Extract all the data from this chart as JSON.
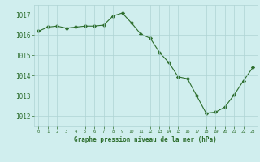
{
  "x": [
    0,
    1,
    2,
    3,
    4,
    5,
    6,
    7,
    8,
    9,
    10,
    11,
    12,
    13,
    14,
    15,
    16,
    17,
    18,
    19,
    20,
    21,
    22,
    23
  ],
  "y": [
    1016.2,
    1016.4,
    1016.45,
    1016.35,
    1016.4,
    1016.45,
    1016.45,
    1016.5,
    1016.95,
    1017.1,
    1016.6,
    1016.05,
    1015.85,
    1015.15,
    1014.65,
    1013.95,
    1013.85,
    1013.0,
    1012.15,
    1012.2,
    1012.45,
    1013.05,
    1013.75,
    1014.4
  ],
  "line_color": "#2d6e2d",
  "marker": "D",
  "marker_size": 2.2,
  "background_color": "#d0eeee",
  "grid_color": "#aed4d4",
  "xlabel": "Graphe pression niveau de la mer (hPa)",
  "xlabel_color": "#2d6e2d",
  "tick_color": "#2d6e2d",
  "ylim": [
    1011.5,
    1017.5
  ],
  "yticks": [
    1012,
    1013,
    1014,
    1015,
    1016,
    1017
  ],
  "xlim": [
    -0.5,
    23.5
  ],
  "xticks": [
    0,
    1,
    2,
    3,
    4,
    5,
    6,
    7,
    8,
    9,
    10,
    11,
    12,
    13,
    14,
    15,
    16,
    17,
    18,
    19,
    20,
    21,
    22,
    23
  ]
}
